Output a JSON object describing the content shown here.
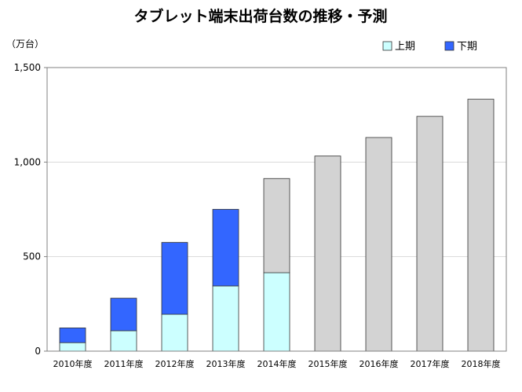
{
  "chart_data": {
    "type": "bar",
    "stacked": true,
    "title": "タブレット端末出荷台数の推移・予測",
    "unit_label": "（万台）",
    "ylim": [
      0,
      1500
    ],
    "yticks": [
      {
        "value": 0,
        "label": "0"
      },
      {
        "value": 500,
        "label": "500"
      },
      {
        "value": 1000,
        "label": "1,000"
      },
      {
        "value": 1500,
        "label": "1,500"
      }
    ],
    "grid": true,
    "legend_position": "top-right",
    "categories": [
      "2010年度",
      "2011年度",
      "2012年度",
      "2013年度",
      "2014年度",
      "2015年度",
      "2016年度",
      "2017年度",
      "2018年度"
    ],
    "series": [
      {
        "name": "上期",
        "color": "#ccffff",
        "values": [
          45,
          108,
          195,
          345,
          415,
          null,
          null,
          null,
          null
        ]
      },
      {
        "name": "下期",
        "color": "#3366ff",
        "values": [
          78,
          172,
          380,
          405,
          null,
          null,
          null,
          null,
          null
        ]
      },
      {
        "color": "#d3d3d3",
        "values": [
          null,
          null,
          null,
          null,
          498,
          1032,
          1130,
          1242,
          1333
        ]
      }
    ],
    "colors": {
      "grid": "#d9d9d9",
      "axis": "#808080",
      "bar_stroke": "#333333"
    }
  }
}
